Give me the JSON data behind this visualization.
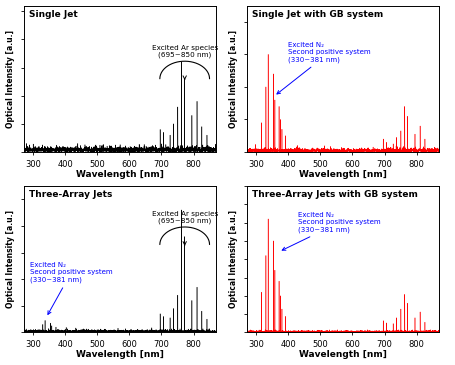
{
  "titles": [
    "Single Jet",
    "Single Jet with GB system",
    "Three-Array Jets",
    "Three-Array Jets with GB system"
  ],
  "xlabel": "Wavelength [nm]",
  "ylabel": "Optical Intensity [a.u.]",
  "xlim": [
    270,
    870
  ],
  "xticks": [
    300,
    400,
    500,
    600,
    700,
    800
  ],
  "colors": [
    "black",
    "red",
    "black",
    "red"
  ],
  "bg_color": "#ffffff",
  "ar_annotation": "Excited Ar species\n(695~850 nm)",
  "n2_annotation": "Excited N₂\nSecond positive system\n(330~381 nm)",
  "n2_annotation_short": "Excited N₂\nSecond positive system\n(330~381 nm)"
}
